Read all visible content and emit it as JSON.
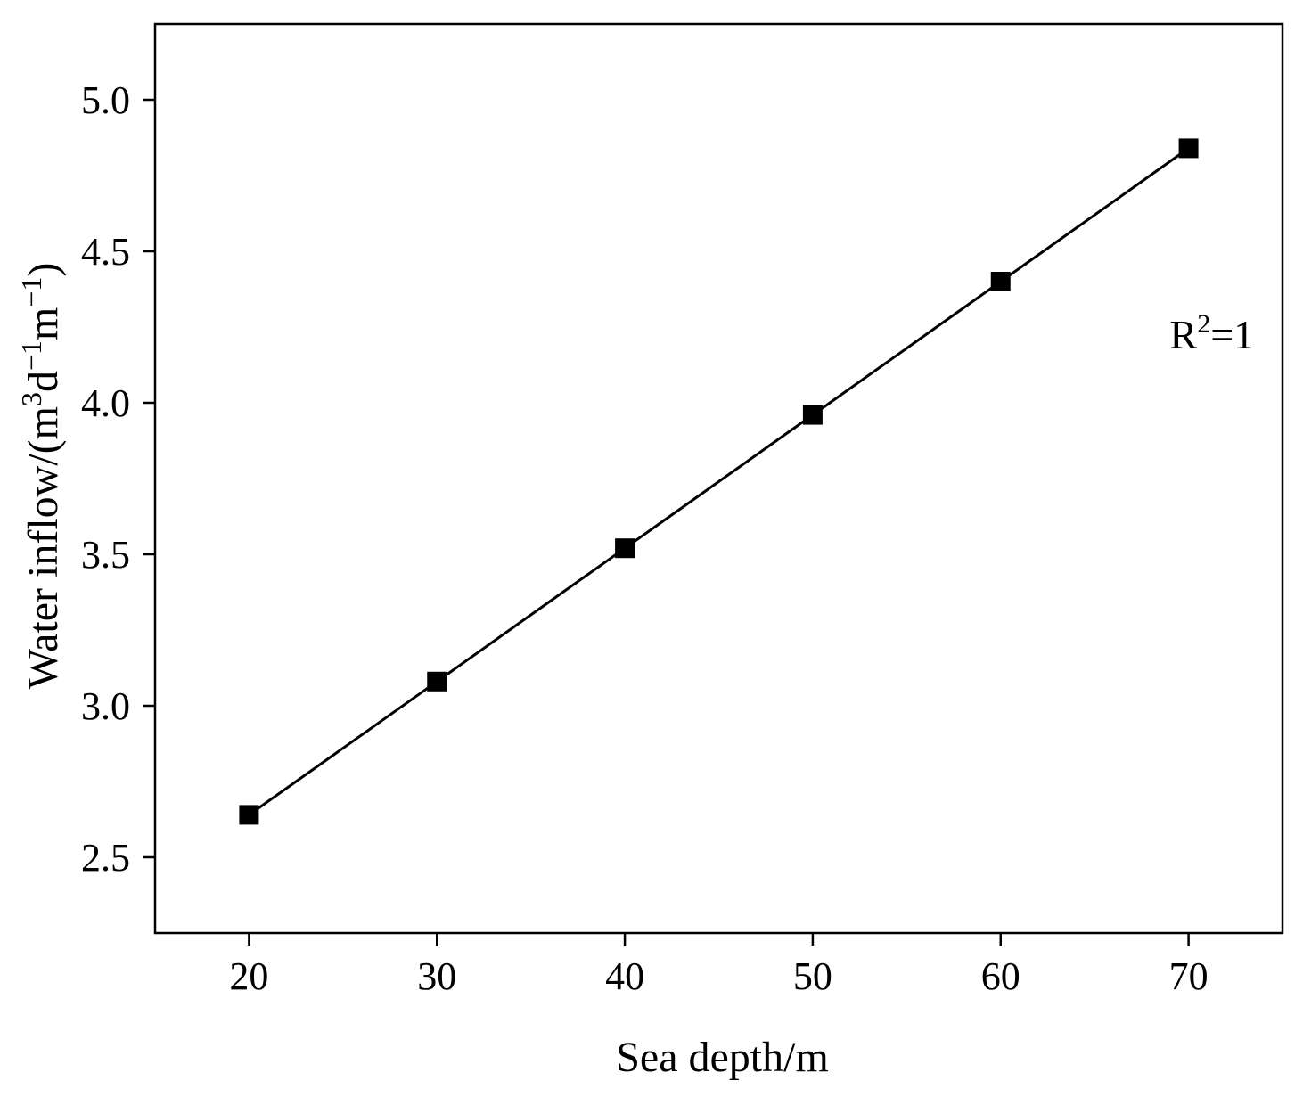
{
  "chart_data": {
    "type": "line",
    "title": "",
    "xlabel": "Sea depth/m",
    "ylabel": {
      "parts": [
        {
          "text": "Water inflow/(m"
        },
        {
          "text": "3",
          "sup": true
        },
        {
          "text": "d"
        },
        {
          "text": "−1",
          "sup": true
        },
        {
          "text": "m"
        },
        {
          "text": "−1",
          "sup": true
        },
        {
          "text": ")"
        }
      ]
    },
    "xlim": [
      15,
      75
    ],
    "ylim": [
      2.25,
      5.25
    ],
    "xticks": [
      20,
      30,
      40,
      50,
      60,
      70
    ],
    "xtick_labels": [
      "20",
      "30",
      "40",
      "50",
      "60",
      "70"
    ],
    "yticks": [
      2.5,
      3.0,
      3.5,
      4.0,
      4.5,
      5.0
    ],
    "ytick_labels": [
      "2.5",
      "3.0",
      "3.5",
      "4.0",
      "4.5",
      "5.0"
    ],
    "grid": false,
    "legend": "none",
    "series": [
      {
        "marker": "square",
        "color": "#000000",
        "x": [
          20,
          30,
          40,
          50,
          60,
          70
        ],
        "y": [
          2.64,
          3.08,
          3.52,
          3.96,
          4.4,
          4.84
        ]
      }
    ],
    "annotations": [
      {
        "x": 69,
        "y": 4.18,
        "parts": [
          {
            "text": "R"
          },
          {
            "text": "2",
            "sup": true
          },
          {
            "text": "=1"
          }
        ]
      }
    ]
  }
}
